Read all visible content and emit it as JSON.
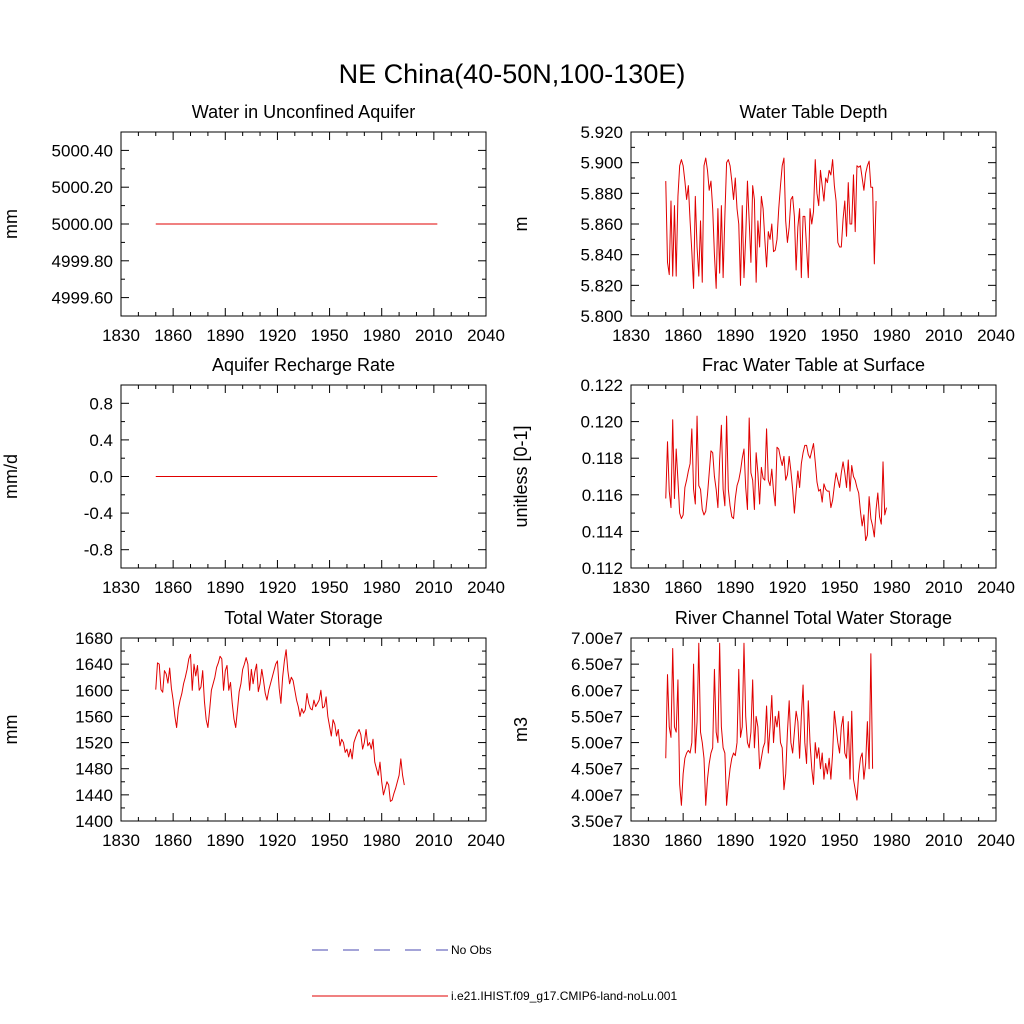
{
  "figure": {
    "title": "NE China(40-50N,100-130E)"
  },
  "colors": {
    "model": "#e00000",
    "obs": "#4a4ab0",
    "axis": "#000000"
  },
  "legend": {
    "entries": [
      {
        "label": "No Obs",
        "style": "dashed",
        "color": "#4a4ab0"
      },
      {
        "label": "i.e21.IHIST.f09_g17.CMIP6-land-noLu.001",
        "style": "solid",
        "color": "#e00000"
      }
    ]
  },
  "chart_data": [
    {
      "type": "line",
      "title": "Water in Unconfined Aquifer",
      "xlabel": "",
      "ylabel": "mm",
      "xlim": [
        1830,
        2040
      ],
      "xticks": [
        1830,
        1860,
        1890,
        1920,
        1950,
        1980,
        2010,
        2040
      ],
      "ylim": [
        4999.5,
        5000.5
      ],
      "yticks": [
        4999.6,
        4999.8,
        5000.0,
        5000.2,
        5000.4
      ],
      "ytick_labels": [
        "4999.60",
        "4999.80",
        "5000.00",
        "5000.20",
        "5000.40"
      ],
      "series": [
        {
          "x": [
            1850,
            2012
          ],
          "y": [
            5000.0,
            5000.0
          ]
        }
      ]
    },
    {
      "type": "line",
      "title": "Water Table Depth",
      "xlabel": "",
      "ylabel": "m",
      "xlim": [
        1830,
        2040
      ],
      "xticks": [
        1830,
        1860,
        1890,
        1920,
        1950,
        1980,
        2010,
        2040
      ],
      "ylim": [
        5.8,
        5.92
      ],
      "yticks": [
        5.8,
        5.82,
        5.84,
        5.86,
        5.88,
        5.9,
        5.92
      ],
      "ytick_labels": [
        "5.800",
        "5.820",
        "5.840",
        "5.860",
        "5.880",
        "5.900",
        "5.920"
      ],
      "series": [
        {
          "x_start": 1850,
          "y": [
            5.888,
            5.835,
            5.827,
            5.875,
            5.826,
            5.872,
            5.826,
            5.878,
            5.898,
            5.902,
            5.898,
            5.888,
            5.876,
            5.885,
            5.862,
            5.842,
            5.818,
            5.878,
            5.845,
            5.826,
            5.862,
            5.822,
            5.898,
            5.903,
            5.895,
            5.882,
            5.888,
            5.87,
            5.84,
            5.818,
            5.87,
            5.828,
            5.872,
            5.825,
            5.865,
            5.9,
            5.902,
            5.898,
            5.888,
            5.876,
            5.89,
            5.87,
            5.86,
            5.82,
            5.872,
            5.825,
            5.852,
            5.888,
            5.862,
            5.835,
            5.885,
            5.876,
            5.822,
            5.862,
            5.845,
            5.878,
            5.87,
            5.85,
            5.832,
            5.855,
            5.85,
            5.86,
            5.842,
            5.843,
            5.85,
            5.87,
            5.885,
            5.898,
            5.903,
            5.862,
            5.848,
            5.858,
            5.876,
            5.878,
            5.865,
            5.83,
            5.858,
            5.87,
            5.825,
            5.865,
            5.865,
            5.845,
            5.825,
            5.87,
            5.86,
            5.868,
            5.902,
            5.88,
            5.872,
            5.895,
            5.885,
            5.875,
            5.89,
            5.887,
            5.895,
            5.892,
            5.902,
            5.885,
            5.875,
            5.848,
            5.845,
            5.845,
            5.863,
            5.875,
            5.852,
            5.887,
            5.86,
            5.86,
            5.892,
            5.855,
            5.898,
            5.897,
            5.898,
            5.89,
            5.882,
            5.893,
            5.898,
            5.901,
            5.884,
            5.884,
            5.834,
            5.875
          ]
        }
      ]
    },
    {
      "type": "line",
      "title": "Aquifer Recharge Rate",
      "xlabel": "",
      "ylabel": "mm/d",
      "xlim": [
        1830,
        2040
      ],
      "xticks": [
        1830,
        1860,
        1890,
        1920,
        1950,
        1980,
        2010,
        2040
      ],
      "ylim": [
        -1.0,
        1.0
      ],
      "yticks": [
        -0.8,
        -0.4,
        0.0,
        0.4,
        0.8
      ],
      "ytick_labels": [
        "-0.8",
        "-0.4",
        "0.0",
        "0.4",
        "0.8"
      ],
      "series": [
        {
          "x": [
            1850,
            2012
          ],
          "y": [
            0.0,
            0.0
          ]
        }
      ]
    },
    {
      "type": "line",
      "title": "Frac Water Table at Surface",
      "xlabel": "",
      "ylabel": "unitless [0-1]",
      "xlim": [
        1830,
        2040
      ],
      "xticks": [
        1830,
        1860,
        1890,
        1920,
        1950,
        1980,
        2010,
        2040
      ],
      "ylim": [
        0.112,
        0.122
      ],
      "yticks": [
        0.112,
        0.114,
        0.116,
        0.118,
        0.12,
        0.122
      ],
      "ytick_labels": [
        "0.112",
        "0.114",
        "0.116",
        "0.118",
        "0.120",
        "0.122"
      ],
      "series": [
        {
          "x_start": 1850,
          "y": [
            0.1158,
            0.1189,
            0.1162,
            0.1153,
            0.1201,
            0.1158,
            0.1185,
            0.1168,
            0.115,
            0.1147,
            0.1149,
            0.1164,
            0.1168,
            0.1173,
            0.1177,
            0.1196,
            0.1163,
            0.1155,
            0.1203,
            0.1165,
            0.1163,
            0.1152,
            0.1149,
            0.1151,
            0.116,
            0.1172,
            0.1184,
            0.1183,
            0.117,
            0.1163,
            0.1153,
            0.1179,
            0.1198,
            0.1163,
            0.1154,
            0.1203,
            0.1163,
            0.1154,
            0.1148,
            0.1147,
            0.1158,
            0.1165,
            0.1168,
            0.1173,
            0.118,
            0.1185,
            0.1164,
            0.1152,
            0.1202,
            0.1172,
            0.1168,
            0.1152,
            0.1183,
            0.1172,
            0.1155,
            0.1175,
            0.1169,
            0.1168,
            0.1196,
            0.1168,
            0.1165,
            0.1174,
            0.1162,
            0.1154,
            0.1186,
            0.1185,
            0.118,
            0.1176,
            0.1181,
            0.1168,
            0.1171,
            0.1181,
            0.1173,
            0.1163,
            0.115,
            0.1162,
            0.1173,
            0.1164,
            0.1177,
            0.1183,
            0.1187,
            0.1187,
            0.1182,
            0.118,
            0.1184,
            0.1188,
            0.1178,
            0.1167,
            0.1162,
            0.1163,
            0.1156,
            0.1166,
            0.1163,
            0.1162,
            0.1162,
            0.1153,
            0.1157,
            0.1165,
            0.1172,
            0.1168,
            0.1164,
            0.1172,
            0.1178,
            0.1172,
            0.1164,
            0.1179,
            0.1162,
            0.1176,
            0.117,
            0.1168,
            0.1164,
            0.1161,
            0.1151,
            0.1143,
            0.1149,
            0.1135,
            0.1138,
            0.1159,
            0.1147,
            0.1143,
            0.1137,
            0.1152,
            0.1161,
            0.1148,
            0.1144,
            0.1178,
            0.1149,
            0.1153
          ]
        }
      ]
    },
    {
      "type": "line",
      "title": "Total Water Storage",
      "xlabel": "",
      "ylabel": "mm",
      "xlim": [
        1830,
        2040
      ],
      "xticks": [
        1830,
        1860,
        1890,
        1920,
        1950,
        1980,
        2010,
        2040
      ],
      "ylim": [
        1400,
        1680
      ],
      "yticks": [
        1400,
        1440,
        1480,
        1520,
        1560,
        1600,
        1640,
        1680
      ],
      "ytick_labels": [
        "1400",
        "1440",
        "1480",
        "1520",
        "1560",
        "1600",
        "1640",
        "1680"
      ],
      "series": [
        {
          "x_start": 1850,
          "y": [
            1601,
            1642,
            1640,
            1601,
            1597,
            1630,
            1625,
            1611,
            1634,
            1603,
            1585,
            1560,
            1543,
            1572,
            1585,
            1595,
            1610,
            1620,
            1632,
            1648,
            1655,
            1600,
            1640,
            1622,
            1638,
            1600,
            1605,
            1630,
            1583,
            1555,
            1543,
            1570,
            1600,
            1610,
            1620,
            1635,
            1642,
            1652,
            1648,
            1600,
            1630,
            1638,
            1600,
            1612,
            1580,
            1556,
            1543,
            1570,
            1598,
            1610,
            1632,
            1640,
            1650,
            1640,
            1600,
            1632,
            1610,
            1628,
            1640,
            1598,
            1610,
            1632,
            1615,
            1595,
            1585,
            1600,
            1610,
            1620,
            1630,
            1640,
            1645,
            1603,
            1580,
            1620,
            1645,
            1662,
            1630,
            1610,
            1620,
            1615,
            1600,
            1585,
            1575,
            1560,
            1572,
            1565,
            1570,
            1595,
            1580,
            1572,
            1570,
            1585,
            1575,
            1580,
            1585,
            1600,
            1573,
            1575,
            1590,
            1560,
            1545,
            1530,
            1555,
            1548,
            1530,
            1540,
            1515,
            1525,
            1520,
            1505,
            1510,
            1498,
            1510,
            1495,
            1520,
            1528,
            1535,
            1540,
            1532,
            1510,
            1520,
            1540,
            1515,
            1520,
            1510,
            1525,
            1490,
            1480,
            1470,
            1490,
            1460,
            1440,
            1450,
            1460,
            1455,
            1430,
            1432,
            1442,
            1450,
            1460,
            1470,
            1495,
            1470,
            1455
          ]
        }
      ]
    },
    {
      "type": "line",
      "title": "River Channel Total Water Storage",
      "xlabel": "",
      "ylabel": "m3",
      "xlim": [
        1830,
        2040
      ],
      "xticks": [
        1830,
        1860,
        1890,
        1920,
        1950,
        1980,
        2010,
        2040
      ],
      "ylim": [
        35000000.0,
        70000000.0
      ],
      "yticks": [
        35000000.0,
        40000000.0,
        45000000.0,
        50000000.0,
        55000000.0,
        60000000.0,
        65000000.0,
        70000000.0
      ],
      "ytick_labels": [
        "3.50e7",
        "4.00e7",
        "4.50e7",
        "5.00e7",
        "5.50e7",
        "6.00e7",
        "6.50e7",
        "7.00e7"
      ],
      "series": [
        {
          "x_start": 1850,
          "y": [
            47000000.0,
            63000000.0,
            53000000.0,
            51000000.0,
            68000000.0,
            53000000.0,
            52000000.0,
            62000000.0,
            42000000.0,
            38000000.0,
            44000000.0,
            47000000.0,
            48000000.0,
            48500000.0,
            48000000.0,
            50000000.0,
            65000000.0,
            48000000.0,
            54000000.0,
            69000000.0,
            52000000.0,
            50000000.0,
            47000000.0,
            38000000.0,
            43000000.0,
            46000000.0,
            48000000.0,
            49000000.0,
            64000000.0,
            52000000.0,
            50000000.0,
            69000000.0,
            53000000.0,
            49000000.0,
            48000000.0,
            38000000.0,
            42000000.0,
            45000000.0,
            47000000.0,
            48000000.0,
            47500000.0,
            50000000.0,
            64000000.0,
            51000000.0,
            53000000.0,
            69000000.0,
            55000000.0,
            50000000.0,
            49000000.0,
            52000000.0,
            62000000.0,
            49000000.0,
            55000000.0,
            53000000.0,
            45000000.0,
            47000000.0,
            49000000.0,
            50000000.0,
            57000000.0,
            48000000.0,
            53000000.0,
            59000000.0,
            50000000.0,
            55000000.0,
            53000000.0,
            56000000.0,
            50000000.0,
            49000000.0,
            41000000.0,
            44000000.0,
            52000000.0,
            58000000.0,
            50000000.0,
            48000000.0,
            52000000.0,
            56000000.0,
            54000000.0,
            47000000.0,
            55000000.0,
            61000000.0,
            50000000.0,
            46000000.0,
            58000000.0,
            50000000.0,
            45000000.0,
            42000000.0,
            50000000.0,
            47000000.0,
            49000000.0,
            45000000.0,
            48000000.0,
            43000000.0,
            46000000.0,
            44000000.0,
            47000000.0,
            43000000.0,
            48000000.0,
            56000000.0,
            53000000.0,
            50000000.0,
            48000000.0,
            53000000.0,
            55000000.0,
            48000000.0,
            47000000.0,
            54000000.0,
            43000000.0,
            56000000.0,
            43000000.0,
            41000000.0,
            39000000.0,
            44000000.0,
            47000000.0,
            48000000.0,
            43000000.0,
            46000000.0,
            54000000.0,
            45000000.0,
            67000000.0,
            45000000.0
          ]
        }
      ]
    }
  ]
}
